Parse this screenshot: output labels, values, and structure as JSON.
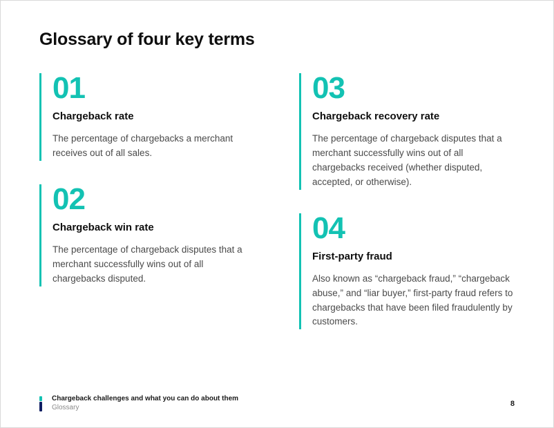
{
  "title": "Glossary of four key terms",
  "accent_color": "#13c2b3",
  "terms": [
    {
      "num": "01",
      "title": "Chargeback rate",
      "desc": "The percentage of chargebacks a merchant receives out of all sales."
    },
    {
      "num": "02",
      "title": "Chargeback win rate",
      "desc": "The percentage of chargeback disputes that a merchant successfully wins out of all chargebacks disputed."
    },
    {
      "num": "03",
      "title": "Chargeback recovery rate",
      "desc": "The percentage of chargeback disputes that a merchant successfully wins out of all chargebacks received (whether disputed, accepted, or otherwise)."
    },
    {
      "num": "04",
      "title": "First-party fraud",
      "desc": "Also known as “chargeback fraud,” “chargeback abuse,” and “liar buyer,” first-party fraud refers to chargebacks that have been filed fraudulently by customers."
    }
  ],
  "footer": {
    "title": "Chargeback challenges and what you can do about them",
    "section": "Glossary",
    "page": "8"
  }
}
